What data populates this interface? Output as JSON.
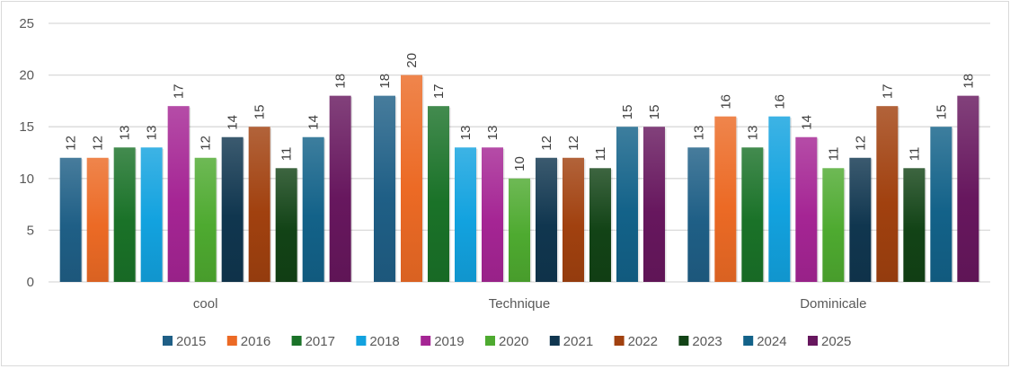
{
  "chart_data": {
    "type": "bar",
    "title": "",
    "xlabel": "",
    "ylabel": "",
    "ylim": [
      0,
      25
    ],
    "yticks": [
      0,
      5,
      10,
      15,
      20,
      25
    ],
    "grid": true,
    "legend_position": "bottom",
    "categories": [
      "cool",
      "Technique",
      "Dominicale"
    ],
    "series": [
      {
        "name": "2015",
        "color": "#1f5f86",
        "values": [
          12,
          18,
          13
        ]
      },
      {
        "name": "2016",
        "color": "#ec6a25",
        "values": [
          12,
          20,
          16
        ]
      },
      {
        "name": "2017",
        "color": "#1a7228",
        "values": [
          13,
          17,
          13
        ]
      },
      {
        "name": "2018",
        "color": "#12a2df",
        "values": [
          13,
          13,
          16
        ]
      },
      {
        "name": "2019",
        "color": "#a52594",
        "values": [
          17,
          13,
          14
        ]
      },
      {
        "name": "2020",
        "color": "#4eaa30",
        "values": [
          12,
          10,
          11
        ]
      },
      {
        "name": "2021",
        "color": "#10364f",
        "values": [
          14,
          12,
          12
        ]
      },
      {
        "name": "2022",
        "color": "#a1410f",
        "values": [
          15,
          12,
          17
        ]
      },
      {
        "name": "2023",
        "color": "#124316",
        "values": [
          11,
          11,
          11
        ]
      },
      {
        "name": "2024",
        "color": "#136289",
        "values": [
          14,
          15,
          15
        ]
      },
      {
        "name": "2025",
        "color": "#67175e",
        "values": [
          18,
          15,
          18
        ]
      }
    ]
  }
}
